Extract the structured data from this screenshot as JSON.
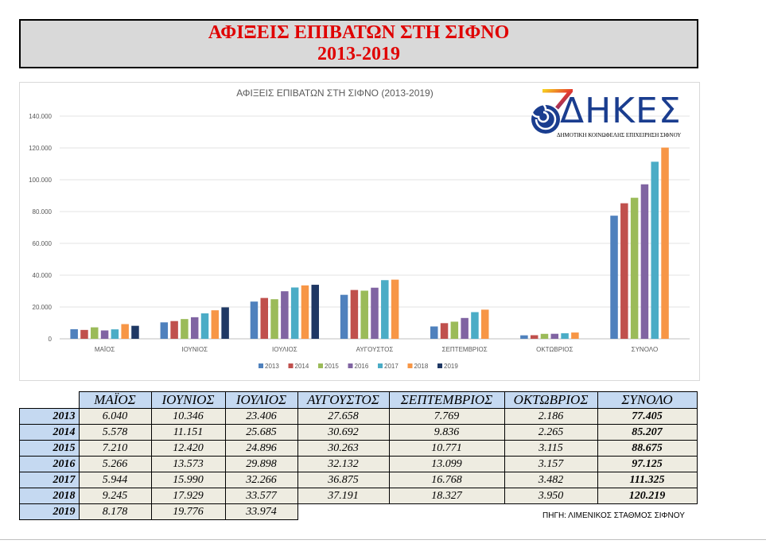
{
  "page_title": {
    "line1": "ΑΦΙΞΕΙΣ ΕΠΙΒΑΤΩΝ ΣΤΗ ΣΙΦΝΟ",
    "line2": "2013-2019"
  },
  "logo": {
    "text": "ΔΗΚΕΣ",
    "subtitle": "ΔΗΜΟΤΙΚΗ ΚΟΙΝΩΦΕΛΗΣ ΕΠΙΧΕΙΡΗΣΗ ΣΙΦΝΟΥ"
  },
  "colors": {
    "2013": "#4f81bd",
    "2014": "#c0504d",
    "2015": "#9bbb59",
    "2016": "#8064a2",
    "2017": "#4bacc6",
    "2018": "#f79646",
    "2019": "#1f3864"
  },
  "chart_data": {
    "type": "bar",
    "title": "ΑΦΙΞΕΙΣ ΕΠΙΒΑΤΩΝ ΣΤΗ ΣΙΦΝΟ (2013-2019)",
    "categories": [
      "ΜΑΪΟΣ",
      "ΙΟΥΝΙΟΣ",
      "ΙΟΥΛΙΟΣ",
      "ΑΥΓΟΥΣΤΟΣ",
      "ΣΕΠΤΕΜΒΡΙΟΣ",
      "ΟΚΤΩΒΡΙΟΣ",
      "ΣΥΝΟΛΟ"
    ],
    "ylim": [
      0,
      140000
    ],
    "yticks": [
      "0",
      "20.000",
      "40.000",
      "60.000",
      "80.000",
      "100.000",
      "120.000",
      "140.000"
    ],
    "legend_position": "bottom",
    "series": [
      {
        "name": "2013",
        "values": [
          6040,
          10346,
          23406,
          27658,
          7769,
          2186,
          77405
        ]
      },
      {
        "name": "2014",
        "values": [
          5578,
          11151,
          25685,
          30692,
          9836,
          2265,
          85207
        ]
      },
      {
        "name": "2015",
        "values": [
          7210,
          12420,
          24896,
          30263,
          10771,
          3115,
          88675
        ]
      },
      {
        "name": "2016",
        "values": [
          5266,
          13573,
          29898,
          32132,
          13099,
          3157,
          97125
        ]
      },
      {
        "name": "2017",
        "values": [
          5944,
          15990,
          32266,
          36875,
          16768,
          3482,
          111325
        ]
      },
      {
        "name": "2018",
        "values": [
          9245,
          17929,
          33577,
          37191,
          18327,
          3950,
          120219
        ]
      },
      {
        "name": "2019",
        "values": [
          8178,
          19776,
          33974,
          null,
          null,
          null,
          null
        ]
      }
    ]
  },
  "table": {
    "headers": [
      "ΜΑΪΟΣ",
      "ΙΟΥΝΙΟΣ",
      "ΙΟΥΛΙΟΣ",
      "ΑΥΓΟΥΣΤΟΣ",
      "ΣΕΠΤΕΜΒΡΙΟΣ",
      "ΟΚΤΩΒΡΙΟΣ",
      "ΣΥΝΟΛΟ"
    ],
    "rows": [
      {
        "year": "2013",
        "cells": [
          "6.040",
          "10.346",
          "23.406",
          "27.658",
          "7.769",
          "2.186",
          "77.405"
        ]
      },
      {
        "year": "2014",
        "cells": [
          "5.578",
          "11.151",
          "25.685",
          "30.692",
          "9.836",
          "2.265",
          "85.207"
        ]
      },
      {
        "year": "2015",
        "cells": [
          "7.210",
          "12.420",
          "24.896",
          "30.263",
          "10.771",
          "3.115",
          "88.675"
        ]
      },
      {
        "year": "2016",
        "cells": [
          "5.266",
          "13.573",
          "29.898",
          "32.132",
          "13.099",
          "3.157",
          "97.125"
        ]
      },
      {
        "year": "2017",
        "cells": [
          "5.944",
          "15.990",
          "32.266",
          "36.875",
          "16.768",
          "3.482",
          "111.325"
        ]
      },
      {
        "year": "2018",
        "cells": [
          "9.245",
          "17.929",
          "33.577",
          "37.191",
          "18.327",
          "3.950",
          "120.219"
        ]
      },
      {
        "year": "2019",
        "cells": [
          "8.178",
          "19.776",
          "33.974"
        ]
      }
    ]
  },
  "source": "ΠΗΓΗ: ΛΙΜΕΝΙΚΟΣ ΣΤΑΘΜΟΣ ΣΙΦΝΟΥ"
}
